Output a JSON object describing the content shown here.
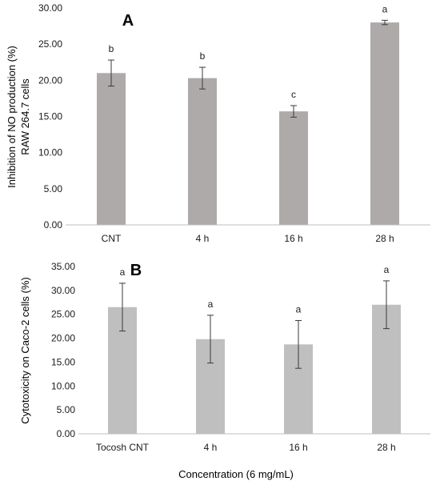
{
  "figure": {
    "shared_xlabel": "Concentration (6 mg/mL)"
  },
  "chart_data": [
    {
      "type": "bar",
      "panel_label": "A",
      "categories": [
        "CNT",
        "4 h",
        "16 h",
        "28 h"
      ],
      "values": [
        21.0,
        20.3,
        15.7,
        28.0
      ],
      "errors": [
        1.8,
        1.5,
        0.8,
        0.3
      ],
      "significance_letters": [
        "b",
        "b",
        "c",
        "a"
      ],
      "ylabel_line1": "Inhibition of NO production (%)",
      "ylabel_line2": "RAW 264.7 cells",
      "ylim": [
        0,
        30
      ],
      "yticks": [
        "0.00",
        "5.00",
        "10.00",
        "15.00",
        "20.00",
        "25.00",
        "30.00"
      ],
      "bar_color": "#aeaaaa",
      "grid": false
    },
    {
      "type": "bar",
      "panel_label": "B",
      "categories": [
        "Tocosh CNT",
        "4 h",
        "16 h",
        "28 h"
      ],
      "values": [
        26.5,
        19.8,
        18.7,
        27.0
      ],
      "errors": [
        5.0,
        5.0,
        5.0,
        5.0
      ],
      "significance_letters": [
        "a",
        "a",
        "a",
        "a"
      ],
      "ylabel_line1": "Cytotoxicity on Caco-2 cells (%)",
      "ylim": [
        0,
        35
      ],
      "yticks": [
        "0.00",
        "5.00",
        "10.00",
        "15.00",
        "20.00",
        "25.00",
        "30.00",
        "35.00"
      ],
      "bar_color": "#bfbfbf",
      "grid": false
    }
  ]
}
